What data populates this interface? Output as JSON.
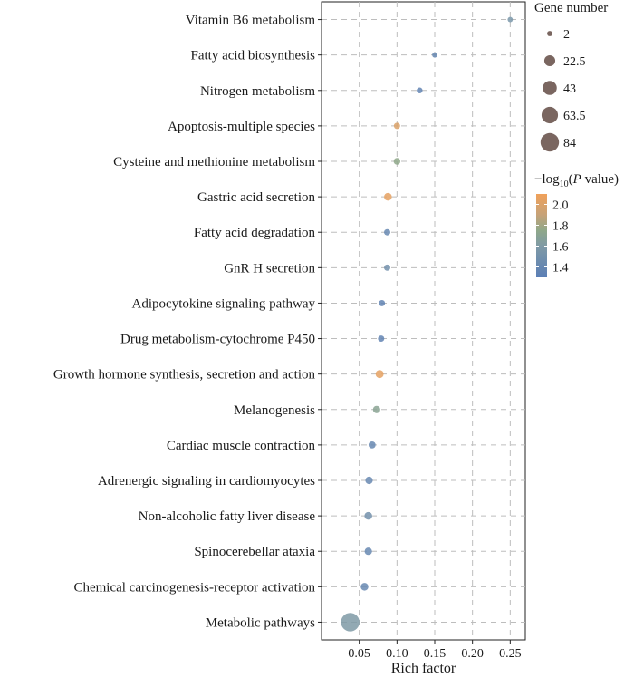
{
  "chart_data": {
    "type": "scatter",
    "xlabel": "Rich factor",
    "xlim": [
      0.0,
      0.27
    ],
    "x_ticks": [
      0.05,
      0.1,
      0.15,
      0.2,
      0.25
    ],
    "x_tick_labels": [
      "0.05",
      "0.10",
      "0.15",
      "0.20",
      "0.25"
    ],
    "grid": true,
    "categories": [
      "Vitamin B6 metabolism",
      "Fatty acid biosynthesis",
      "Nitrogen metabolism",
      "Apoptosis-multiple species",
      "Cysteine and methionine metabolism",
      "Gastric acid secretion",
      "Fatty acid degradation",
      "GnR H secretion",
      "Adipocytokine signaling pathway",
      "Drug metabolism-cytochrome P450",
      "Growth hormone synthesis, secretion and action",
      "Melanogenesis",
      "Cardiac muscle contraction",
      "Adrenergic signaling in cardiomyocytes",
      "Non-alcoholic fatty liver disease",
      "Spinocerebellar ataxia",
      "Chemical carcinogenesis-receptor activation",
      "Metabolic pathways"
    ],
    "points": [
      {
        "category": "Vitamin B6 metabolism",
        "rich_factor": 0.25,
        "gene_number": 2,
        "neg_log10_p": 1.55
      },
      {
        "category": "Fatty acid biosynthesis",
        "rich_factor": 0.15,
        "gene_number": 2,
        "neg_log10_p": 1.4
      },
      {
        "category": "Nitrogen metabolism",
        "rich_factor": 0.13,
        "gene_number": 3,
        "neg_log10_p": 1.35
      },
      {
        "category": "Apoptosis-multiple species",
        "rich_factor": 0.1,
        "gene_number": 4,
        "neg_log10_p": 2.0
      },
      {
        "category": "Cysteine and methionine metabolism",
        "rich_factor": 0.1,
        "gene_number": 5,
        "neg_log10_p": 1.75
      },
      {
        "category": "Gastric acid secretion",
        "rich_factor": 0.088,
        "gene_number": 8,
        "neg_log10_p": 2.05
      },
      {
        "category": "Fatty acid degradation",
        "rich_factor": 0.087,
        "gene_number": 4,
        "neg_log10_p": 1.4
      },
      {
        "category": "GnR H secretion",
        "rich_factor": 0.087,
        "gene_number": 4,
        "neg_log10_p": 1.5
      },
      {
        "category": "Adipocytokine signaling pathway",
        "rich_factor": 0.08,
        "gene_number": 4,
        "neg_log10_p": 1.35
      },
      {
        "category": "Drug metabolism-cytochrome P450",
        "rich_factor": 0.079,
        "gene_number": 4,
        "neg_log10_p": 1.35
      },
      {
        "category": "Growth hormone synthesis, secretion and action",
        "rich_factor": 0.077,
        "gene_number": 9,
        "neg_log10_p": 2.05
      },
      {
        "category": "Melanogenesis",
        "rich_factor": 0.073,
        "gene_number": 7,
        "neg_log10_p": 1.7
      },
      {
        "category": "Cardiac muscle contraction",
        "rich_factor": 0.067,
        "gene_number": 6,
        "neg_log10_p": 1.4
      },
      {
        "category": "Adrenergic signaling in cardiomyocytes",
        "rich_factor": 0.063,
        "gene_number": 7,
        "neg_log10_p": 1.4
      },
      {
        "category": "Non-alcoholic fatty liver disease",
        "rich_factor": 0.062,
        "gene_number": 8,
        "neg_log10_p": 1.5
      },
      {
        "category": "Spinocerebellar ataxia",
        "rich_factor": 0.062,
        "gene_number": 7,
        "neg_log10_p": 1.4
      },
      {
        "category": "Chemical carcinogenesis-receptor activation",
        "rich_factor": 0.057,
        "gene_number": 8,
        "neg_log10_p": 1.4
      },
      {
        "category": "Metabolic pathways",
        "rich_factor": 0.038,
        "gene_number": 84,
        "neg_log10_p": 1.6
      }
    ],
    "size_legend": {
      "title": "Gene number",
      "values": [
        2,
        22.5,
        43,
        63.5,
        84
      ],
      "labels": [
        "2",
        "22.5",
        "43",
        "63.5",
        "84"
      ],
      "color": "#7a6660"
    },
    "color_legend": {
      "title_prefix": "−log",
      "title_sub": "10",
      "title_open": "(",
      "title_italic": "P",
      "title_suffix": " value)",
      "range": [
        1.3,
        2.1
      ],
      "ticks": [
        2.0,
        1.8,
        1.6,
        1.4
      ],
      "tick_labels": [
        "2.0",
        "1.8",
        "1.6",
        "1.4"
      ],
      "gradient": [
        {
          "value": 1.3,
          "color": "#5b7fb6"
        },
        {
          "value": 1.6,
          "color": "#7f9aa6"
        },
        {
          "value": 1.75,
          "color": "#8fa88a"
        },
        {
          "value": 1.9,
          "color": "#c6a278"
        },
        {
          "value": 2.1,
          "color": "#f0a15a"
        }
      ]
    }
  }
}
